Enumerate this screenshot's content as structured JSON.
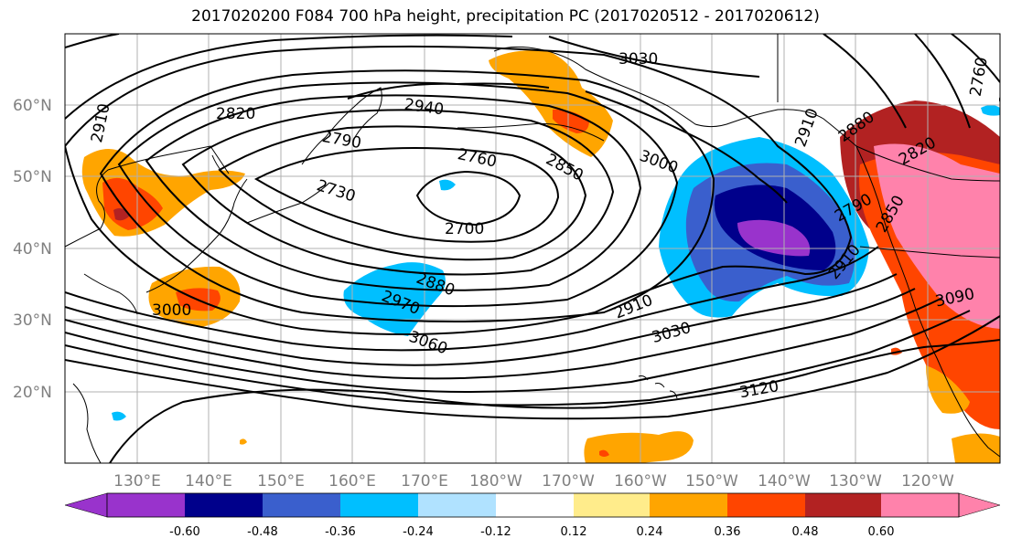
{
  "title": "2017020200 F084 700 hPa height, precipitation PC (2017020512 - 2017020612)",
  "lat_labels": [
    "60°N",
    "50°N",
    "40°N",
    "30°N",
    "20°N"
  ],
  "lon_labels": [
    "130°E",
    "140°E",
    "150°E",
    "160°E",
    "170°E",
    "180°W",
    "170°W",
    "160°W",
    "150°W",
    "140°W",
    "130°W",
    "120°W"
  ],
  "contour_labels": [
    "3030",
    "2940",
    "2820",
    "2910",
    "2790",
    "2760",
    "2850",
    "3000",
    "2730",
    "2700",
    "2910",
    "2880",
    "2820",
    "2790",
    "2850",
    "2910",
    "2880",
    "2970",
    "3060",
    "2910",
    "3030",
    "3000",
    "3090",
    "3120",
    "2760",
    "2790"
  ],
  "colorbar": {
    "colors": [
      "#9933cc",
      "#00008b",
      "#3a5fcd",
      "#00bfff",
      "#b0e2ff",
      "#ffffff",
      "#ffec8b",
      "#ffa500",
      "#ff4500",
      "#b22222",
      "#ff82ab"
    ],
    "tick_labels": [
      "-0.60",
      "-0.48",
      "-0.36",
      "-0.24",
      "-0.12",
      "0.12",
      "0.24",
      "0.36",
      "0.48",
      "0.60"
    ]
  },
  "colors": {
    "contour": "#000000",
    "grid": "#b0b0b0",
    "axis_label": "#808080",
    "positive_low": "#ffa500",
    "positive_mid": "#ff4500",
    "positive_high": "#b22222",
    "positive_max": "#ff82ab",
    "negative_low": "#00bfff",
    "negative_mid": "#3a5fcd",
    "negative_high": "#00008b",
    "negative_max": "#9933cc"
  }
}
